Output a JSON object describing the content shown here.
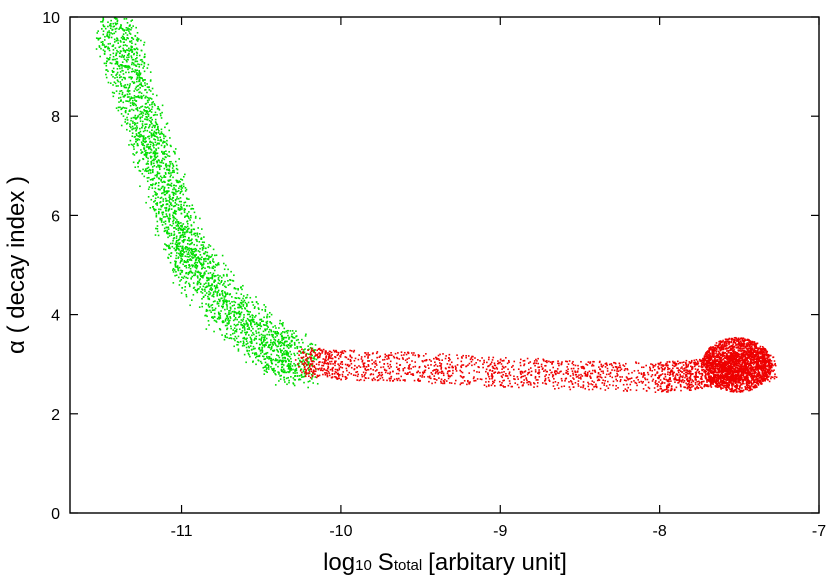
{
  "chart_data": {
    "type": "scatter",
    "title": "",
    "xlabel": {
      "main": "log",
      "sub10": "10",
      "symbol": "S",
      "subscript": "total",
      "rest": "[arbitary unit]"
    },
    "ylabel": "α ( decay index )",
    "xlim": [
      -11.7,
      -7
    ],
    "ylim": [
      0,
      10
    ],
    "x_ticks": [
      "-11",
      "-10",
      "-9",
      "-8",
      "-7"
    ],
    "y_ticks": [
      "0",
      "2",
      "4",
      "6",
      "8",
      "10"
    ],
    "grid": false,
    "legend": "none",
    "series": [
      {
        "color": "#00dd00",
        "points": [
          [
            -11.45,
            10.0
          ],
          [
            -11.4,
            9.5
          ],
          [
            -11.35,
            9.0
          ],
          [
            -11.3,
            8.5
          ],
          [
            -11.25,
            8.0
          ],
          [
            -11.2,
            7.5
          ],
          [
            -11.15,
            7.0
          ],
          [
            -11.1,
            6.5
          ],
          [
            -11.05,
            6.0
          ],
          [
            -11.0,
            5.6
          ],
          [
            -10.95,
            5.2
          ],
          [
            -10.9,
            4.9
          ],
          [
            -10.8,
            4.5
          ],
          [
            -10.7,
            4.1
          ],
          [
            -10.6,
            3.8
          ],
          [
            -10.5,
            3.5
          ],
          [
            -10.4,
            3.3
          ],
          [
            -10.3,
            3.15
          ],
          [
            -10.25,
            3.05
          ]
        ]
      },
      {
        "color": "#ee0000",
        "points": [
          [
            -10.25,
            3.05
          ],
          [
            -10.0,
            3.0
          ],
          [
            -9.5,
            2.95
          ],
          [
            -9.0,
            2.85
          ],
          [
            -8.5,
            2.8
          ],
          [
            -8.0,
            2.75
          ],
          [
            -7.8,
            2.8
          ],
          [
            -7.6,
            2.9
          ],
          [
            -7.5,
            3.0
          ],
          [
            -7.3,
            2.95
          ]
        ]
      }
    ],
    "colors": {
      "axis": "#000000",
      "green": "#00dd00",
      "red": "#ee0000"
    }
  }
}
